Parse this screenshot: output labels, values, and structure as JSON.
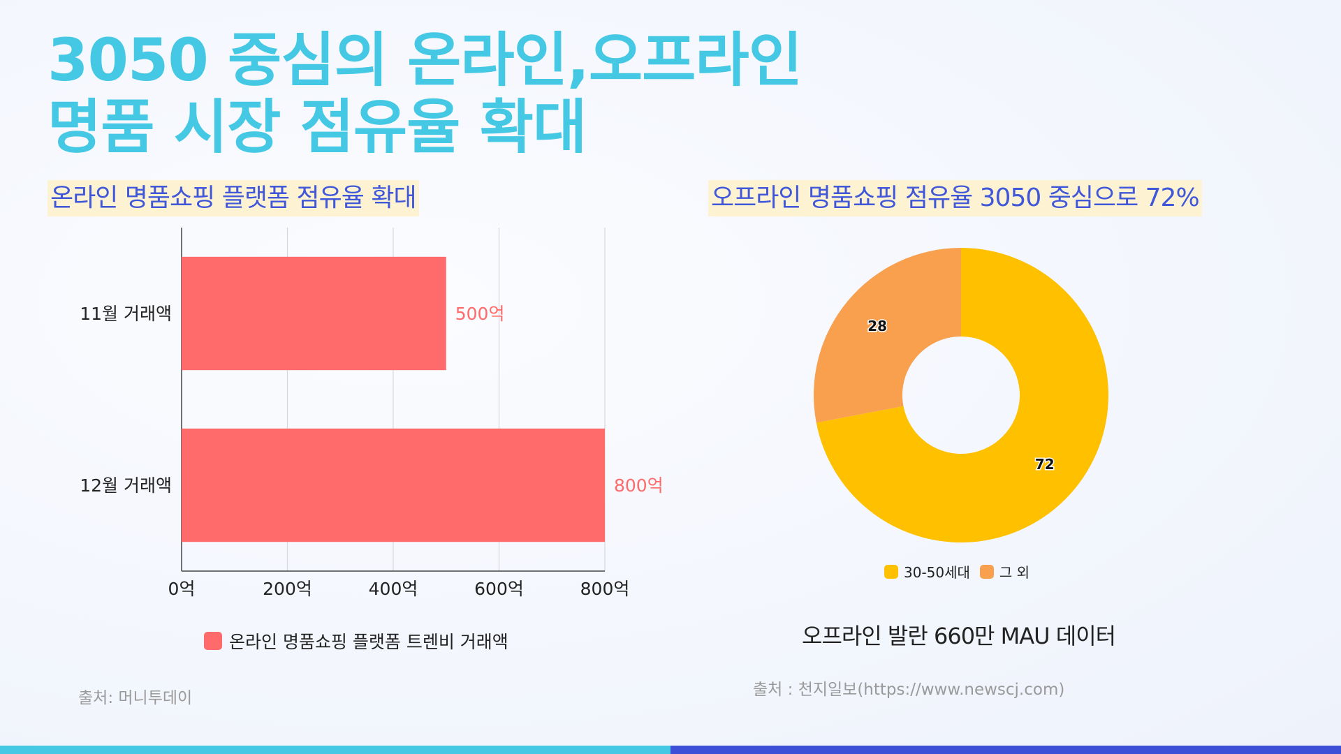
{
  "title": {
    "line1": "3050 중심의 온라인,오프라인",
    "line2": "명품 시장 점유율 확대"
  },
  "left_section": {
    "heading": "온라인 명품쇼핑 플랫폼 점유율 확대",
    "source": "출처: 머니투데이"
  },
  "right_section": {
    "heading": "오프라인 명품쇼핑 점유율 3050 중심으로 72%",
    "caption": "오프라인 발란 660만 MAU 데이터",
    "source": "출처 : 천지일보(https://www.newscj.com)"
  },
  "colors": {
    "title": "#45c8e3",
    "heading": "#3f57d8",
    "heading_bg": "#fdf3d2",
    "bar": "#ff6a6a",
    "pie_main": "#ffc000",
    "pie_other": "#f9a04f",
    "bottom_left": "#45c8e3",
    "bottom_right": "#3d4fd6"
  },
  "chart_data": [
    {
      "type": "bar",
      "orientation": "horizontal",
      "categories": [
        "11월 거래액",
        "12월 거래액"
      ],
      "values": [
        500,
        800
      ],
      "value_labels": [
        "500억",
        "800억"
      ],
      "series": [
        {
          "name": "온라인 명품쇼핑 플랫폼 트렌비 거래액",
          "values": [
            500,
            800
          ]
        }
      ],
      "xlim": [
        0,
        800
      ],
      "xticks": [
        0,
        200,
        400,
        600,
        800
      ],
      "xtick_labels": [
        "0억",
        "200억",
        "400억",
        "600억",
        "800억"
      ],
      "grid": true,
      "legend": "bottom"
    },
    {
      "type": "pie",
      "donut": true,
      "labels": [
        "30-50세대",
        "그 외"
      ],
      "values": [
        72,
        28
      ],
      "value_labels": [
        "72",
        "28"
      ],
      "legend": "bottom"
    }
  ]
}
